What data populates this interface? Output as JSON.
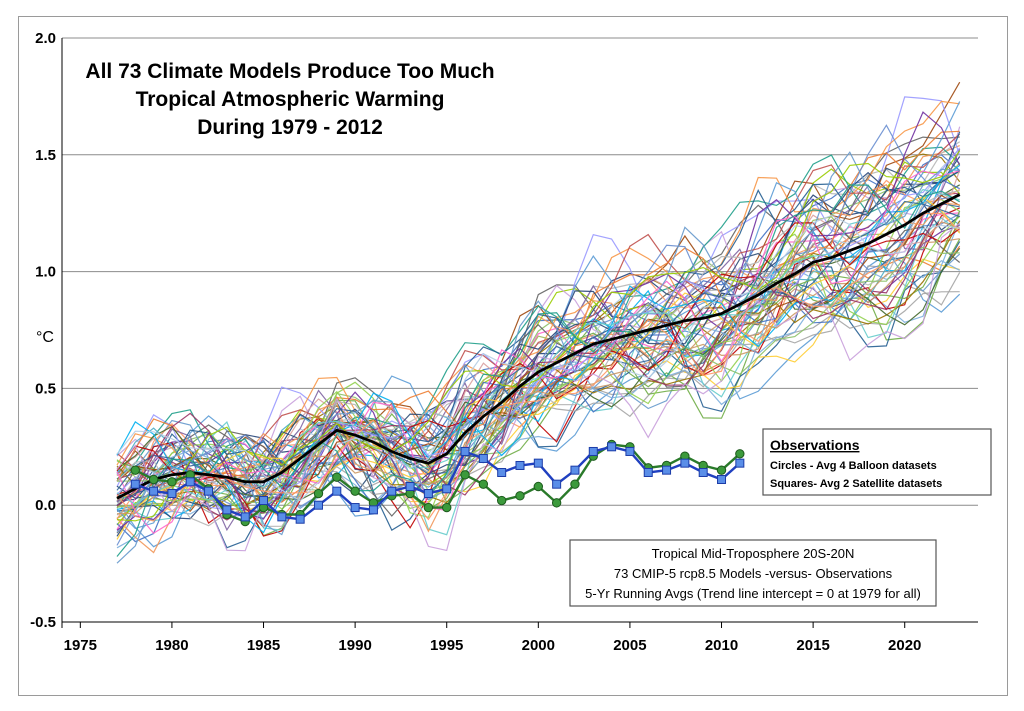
{
  "chart_data": {
    "type": "line",
    "title_lines": [
      "All 73 Climate Models Produce Too Much",
      "Tropical Atmospheric Warming",
      "During 1979 - 2012"
    ],
    "ylabel": "°C",
    "xlim": [
      1974,
      2024
    ],
    "ylim": [
      -0.5,
      2.0
    ],
    "xticks": [
      "1975",
      "1980",
      "1985",
      "1990",
      "1995",
      "2000",
      "2005",
      "2010",
      "2015",
      "2020"
    ],
    "yticks": [
      "-0.5",
      "0.0",
      "0.5",
      "1.0",
      "1.5",
      "2.0"
    ],
    "grid": true,
    "model_runs_count": 73,
    "model_mean": {
      "x": [
        1977,
        1978,
        1979,
        1980,
        1981,
        1982,
        1983,
        1984,
        1985,
        1986,
        1987,
        1988,
        1989,
        1990,
        1991,
        1992,
        1993,
        1994,
        1995,
        1996,
        1997,
        1998,
        1999,
        2000,
        2001,
        2002,
        2003,
        2004,
        2005,
        2006,
        2007,
        2008,
        2009,
        2010,
        2011,
        2012,
        2013,
        2014,
        2015,
        2016,
        2017,
        2018,
        2019,
        2020,
        2021,
        2022,
        2023
      ],
      "y": [
        0.03,
        0.07,
        0.11,
        0.13,
        0.14,
        0.13,
        0.12,
        0.1,
        0.1,
        0.14,
        0.2,
        0.26,
        0.32,
        0.3,
        0.27,
        0.23,
        0.2,
        0.18,
        0.22,
        0.31,
        0.38,
        0.44,
        0.51,
        0.57,
        0.61,
        0.65,
        0.69,
        0.71,
        0.73,
        0.75,
        0.77,
        0.79,
        0.8,
        0.82,
        0.86,
        0.9,
        0.95,
        0.99,
        1.04,
        1.06,
        1.09,
        1.12,
        1.16,
        1.2,
        1.25,
        1.29,
        1.33
      ]
    },
    "series": [
      {
        "name": "Circles - Avg 4 Balloon datasets",
        "color": "#2a7a2a",
        "marker": "circle",
        "x": [
          1978,
          1979,
          1980,
          1981,
          1982,
          1983,
          1984,
          1985,
          1986,
          1987,
          1988,
          1989,
          1990,
          1991,
          1992,
          1993,
          1994,
          1995,
          1996,
          1997,
          1998,
          1999,
          2000,
          2001,
          2002,
          2003,
          2004,
          2005,
          2006,
          2007,
          2008,
          2009,
          2010,
          2011
        ],
        "y": [
          0.15,
          0.11,
          0.1,
          0.13,
          0.07,
          -0.04,
          -0.07,
          -0.01,
          -0.04,
          -0.04,
          0.05,
          0.12,
          0.06,
          0.01,
          0.04,
          0.05,
          -0.01,
          -0.01,
          0.13,
          0.09,
          0.02,
          0.04,
          0.08,
          0.01,
          0.09,
          0.21,
          0.26,
          0.25,
          0.16,
          0.17,
          0.21,
          0.17,
          0.15,
          0.22
        ]
      },
      {
        "name": "Squares- Avg 2 Satellite datasets",
        "color": "#2040c0",
        "marker": "square",
        "x": [
          1978,
          1979,
          1980,
          1981,
          1982,
          1983,
          1984,
          1985,
          1986,
          1987,
          1988,
          1989,
          1990,
          1991,
          1992,
          1993,
          1994,
          1995,
          1996,
          1997,
          1998,
          1999,
          2000,
          2001,
          2002,
          2003,
          2004,
          2005,
          2006,
          2007,
          2008,
          2009,
          2010,
          2011
        ],
        "y": [
          0.09,
          0.06,
          0.05,
          0.1,
          0.06,
          -0.02,
          -0.05,
          0.02,
          -0.05,
          -0.06,
          0.0,
          0.06,
          -0.01,
          -0.02,
          0.06,
          0.08,
          0.05,
          0.07,
          0.23,
          0.2,
          0.14,
          0.17,
          0.18,
          0.09,
          0.15,
          0.23,
          0.25,
          0.23,
          0.14,
          0.15,
          0.18,
          0.14,
          0.11,
          0.18
        ]
      }
    ],
    "legend": {
      "title": "Observations",
      "items": [
        "Circles - Avg 4 Balloon datasets",
        "Squares- Avg 2 Satellite datasets"
      ],
      "placement": "middle-right"
    },
    "annotation_lines": [
      "Tropical Mid-Troposphere 20S-20N",
      "73 CMIP-5 rcp8.5 Models -versus- Observations",
      "5-Yr Running Avgs (Trend line intercept = 0 at 1979 for all)"
    ],
    "palette": [
      "#5b9bd5",
      "#ed7d31",
      "#a5a5a5",
      "#4472c4",
      "#70ad47",
      "#264478",
      "#9e480e",
      "#636363",
      "#997300",
      "#255e91",
      "#43682b",
      "#698ed0",
      "#f1975a",
      "#b7b7b7",
      "#ffcd33",
      "#7cafdd",
      "#8cc168",
      "#c00000",
      "#7030a0",
      "#00b0f0",
      "#92d050",
      "#ff66cc",
      "#9999ff",
      "#66cccc",
      "#cc9966",
      "#336699",
      "#993366",
      "#6699cc",
      "#99cc00",
      "#ff9966",
      "#c9a0dc",
      "#1f9e89",
      "#b5cde3",
      "#8064a2",
      "#4bacc6",
      "#f79646",
      "#9bbb59",
      "#c0504d",
      "#2c4d75",
      "#d9a0a0"
    ]
  }
}
